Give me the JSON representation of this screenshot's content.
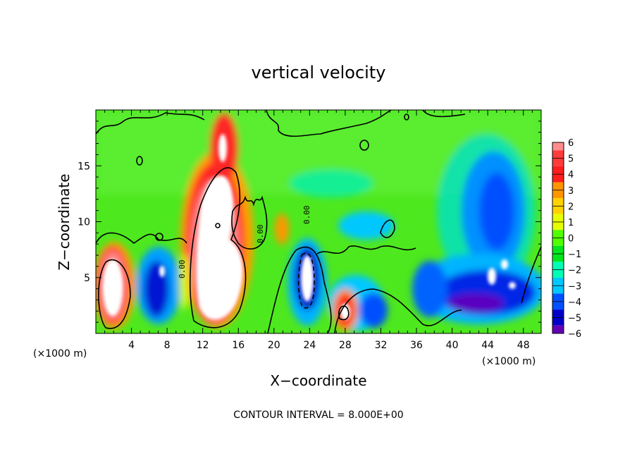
{
  "chart_data": {
    "type": "heatmap",
    "title": "vertical velocity",
    "xlabel": "X−coordinate",
    "ylabel": "Z−coordinate",
    "x_unit_left": "(×1000 m)",
    "x_unit_right": "(×1000 m)",
    "xlim": [
      0,
      50
    ],
    "ylim": [
      0,
      20
    ],
    "x_ticks": [
      4,
      8,
      12,
      16,
      20,
      24,
      28,
      32,
      36,
      40,
      44,
      48
    ],
    "y_ticks": [
      5,
      10,
      15
    ],
    "contour_label": "0.00",
    "footer": "CONTOUR INTERVAL = 8.000E+00",
    "colorbar": {
      "ticks": [
        "6",
        "5",
        "4",
        "3",
        "2",
        "1",
        "0",
        "−1",
        "−2",
        "−3",
        "−4",
        "−5",
        "−6"
      ],
      "colors": [
        "#ff8c8c",
        "#ff3c3c",
        "#ff1e1e",
        "#ff9600",
        "#ffd200",
        "#e6ff00",
        "#50ff00",
        "#00e61e",
        "#00ffb4",
        "#00c8ff",
        "#0050ff",
        "#0000c8",
        "#6400b4"
      ]
    },
    "background_color": "#50e61e",
    "features": [
      {
        "name": "updraft-core-large",
        "x": 13.5,
        "z": 8,
        "w_sign": "positive",
        "w_max": ">6"
      },
      {
        "name": "updraft-left",
        "x": 1.8,
        "z": 4,
        "w_sign": "positive",
        "w_max": ">6"
      },
      {
        "name": "updraft-small",
        "x": 28.5,
        "z": 2,
        "w_sign": "positive",
        "w_max": ">6"
      },
      {
        "name": "downdraft-center",
        "x": 23.5,
        "z": 5,
        "w_sign": "negative",
        "w_min": "<−6"
      },
      {
        "name": "downdraft-right",
        "x": 44,
        "z": 5,
        "w_sign": "negative",
        "w_min": "-6"
      }
    ]
  }
}
